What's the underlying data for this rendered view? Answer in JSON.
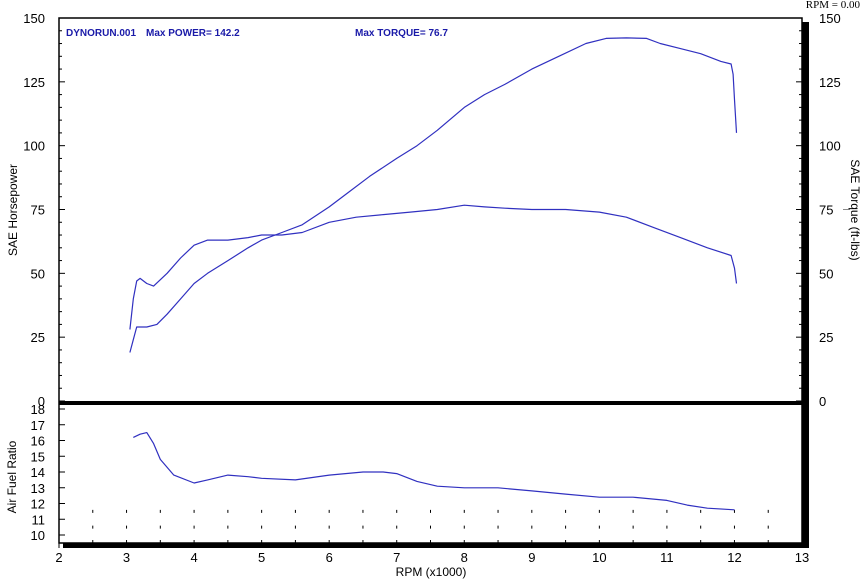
{
  "rpm_readout": "RPM = 0.00",
  "header": {
    "run_label": "DYNORUN.001",
    "max_power_label": "Max POWER= 142.2",
    "max_torque_label": "Max TORQUE= 76.7"
  },
  "colors": {
    "curve": "#3030c0",
    "header_text": "#1a1aa8",
    "axis": "#000000"
  },
  "chart_data": [
    {
      "type": "line",
      "title": "",
      "xlabel": "",
      "ylabel": "SAE Horsepower",
      "y2label": "SAE Torque (ft-lbs)",
      "xlim": [
        2,
        13
      ],
      "ylim": [
        0,
        150
      ],
      "y_ticks": [
        "0",
        "25",
        "50",
        "75",
        "100",
        "125",
        "150"
      ],
      "y2_ticks": [
        "0",
        "25",
        "50",
        "75",
        "100",
        "125",
        "150"
      ],
      "grid": false,
      "series": [
        {
          "x": [
            3.05,
            3.1,
            3.15,
            3.2,
            3.3,
            3.45,
            3.6,
            3.8,
            4.0,
            4.2,
            4.5,
            4.8,
            5.0,
            5.3,
            5.6,
            6.0,
            6.3,
            6.6,
            7.0,
            7.3,
            7.6,
            8.0,
            8.3,
            8.6,
            9.0,
            9.4,
            9.8,
            10.1,
            10.4,
            10.7,
            10.9,
            11.2,
            11.5,
            11.8,
            11.95,
            11.98,
            12.0,
            12.03
          ],
          "values": [
            19,
            24,
            29,
            29,
            29,
            30,
            34,
            40,
            46,
            50,
            55,
            60,
            63,
            66,
            69,
            76,
            82,
            88,
            95,
            100,
            106,
            115,
            120,
            124,
            130,
            135,
            140,
            142,
            142.2,
            142,
            140,
            138,
            136,
            133,
            132,
            128,
            118,
            105
          ]
        },
        {
          "x": [
            3.05,
            3.1,
            3.15,
            3.2,
            3.3,
            3.4,
            3.6,
            3.8,
            4.0,
            4.2,
            4.5,
            4.8,
            5.0,
            5.3,
            5.6,
            6.0,
            6.4,
            6.8,
            7.2,
            7.6,
            8.0,
            8.3,
            8.6,
            9.0,
            9.5,
            10.0,
            10.4,
            10.8,
            11.2,
            11.6,
            11.95,
            12.0,
            12.03
          ],
          "values": [
            28,
            40,
            47,
            48,
            46,
            45,
            50,
            56,
            61,
            63,
            63,
            64,
            65,
            65,
            66,
            70,
            72,
            73,
            74,
            75,
            76.7,
            76,
            75.5,
            75,
            75,
            74,
            72,
            68,
            64,
            60,
            57,
            52,
            46
          ]
        }
      ]
    },
    {
      "type": "line",
      "title": "",
      "xlabel": "RPM (x1000)",
      "ylabel": "Air Fuel Ratio",
      "xlim": [
        2,
        13
      ],
      "ylim": [
        10,
        18
      ],
      "x_ticks": [
        "2",
        "3",
        "4",
        "5",
        "6",
        "7",
        "8",
        "9",
        "10",
        "11",
        "12",
        "13"
      ],
      "y_ticks": [
        "10",
        "11",
        "12",
        "13",
        "14",
        "15",
        "16",
        "17",
        "18"
      ],
      "grid": false,
      "series": [
        {
          "x": [
            3.1,
            3.2,
            3.3,
            3.4,
            3.5,
            3.7,
            4.0,
            4.2,
            4.5,
            4.8,
            5.0,
            5.5,
            6.0,
            6.5,
            6.8,
            7.0,
            7.3,
            7.6,
            8.0,
            8.5,
            9.0,
            9.5,
            10.0,
            10.5,
            11.0,
            11.3,
            11.6,
            12.0
          ],
          "values": [
            16.2,
            16.4,
            16.5,
            15.8,
            14.8,
            13.8,
            13.3,
            13.5,
            13.8,
            13.7,
            13.6,
            13.5,
            13.8,
            14.0,
            14.0,
            13.9,
            13.4,
            13.1,
            13.0,
            13.0,
            12.8,
            12.6,
            12.4,
            12.4,
            12.2,
            11.9,
            11.7,
            11.6
          ]
        }
      ]
    }
  ]
}
